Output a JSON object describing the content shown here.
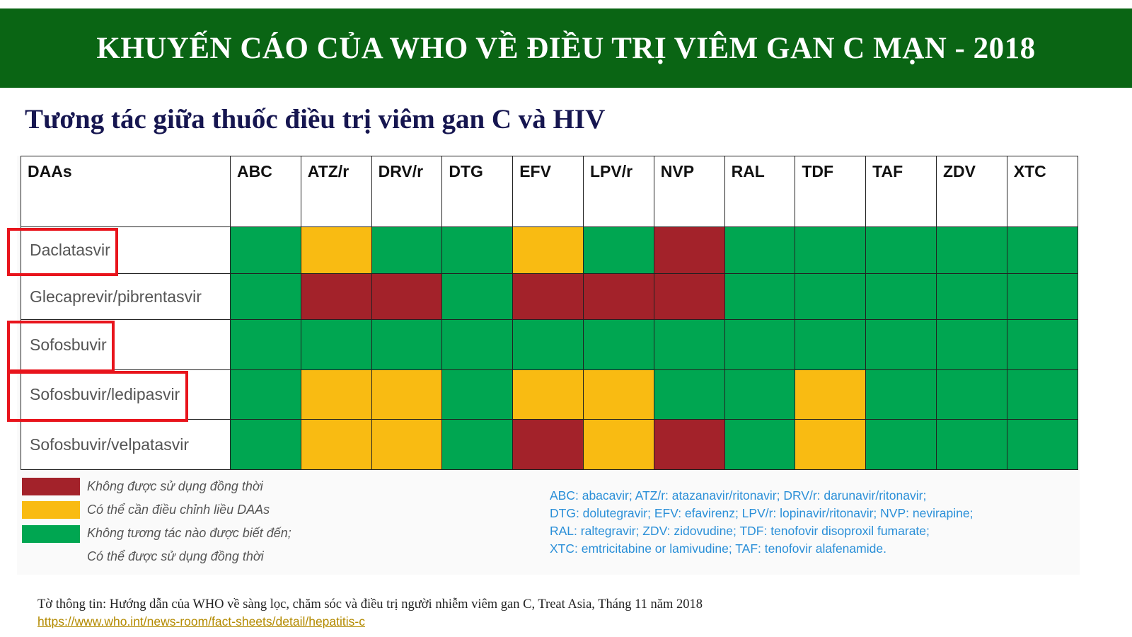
{
  "banner": {
    "title": "KHUYẾN CÁO CỦA WHO VỀ ĐIỀU TRỊ VIÊM GAN C MẠN - 2018"
  },
  "subtitle": "Tương tác giữa thuốc điều trị viêm gan C và HIV",
  "colors": {
    "red": "#a3222a",
    "yellow": "#f9bb12",
    "green": "#00a651",
    "banner_green": "#0a6514",
    "highlight": "#e8141c"
  },
  "table": {
    "corner_label": "DAAs",
    "columns": [
      "ABC",
      "ATZ/r",
      "DRV/r",
      "DTG",
      "EFV",
      "LPV/r",
      "NVP",
      "RAL",
      "TDF",
      "TAF",
      "ZDV",
      "XTC"
    ],
    "rows": [
      {
        "name": "Daclatasvir",
        "highlighted": true,
        "cells": [
          "green",
          "yellow",
          "green",
          "green",
          "yellow",
          "green",
          "red",
          "green",
          "green",
          "green",
          "green",
          "green"
        ]
      },
      {
        "name": "Glecaprevir/pibrentasvir",
        "highlighted": false,
        "cells": [
          "green",
          "red",
          "red",
          "green",
          "red",
          "red",
          "red",
          "green",
          "green",
          "green",
          "green",
          "green"
        ]
      },
      {
        "name": "Sofosbuvir",
        "highlighted": true,
        "cells": [
          "green",
          "green",
          "green",
          "green",
          "green",
          "green",
          "green",
          "green",
          "green",
          "green",
          "green",
          "green"
        ]
      },
      {
        "name": "Sofosbuvir/ledipasvir",
        "highlighted": true,
        "cells": [
          "green",
          "yellow",
          "yellow",
          "green",
          "yellow",
          "yellow",
          "green",
          "green",
          "yellow",
          "green",
          "green",
          "green"
        ]
      },
      {
        "name": "Sofosbuvir/velpatasvir",
        "highlighted": false,
        "cells": [
          "green",
          "yellow",
          "yellow",
          "green",
          "red",
          "yellow",
          "red",
          "green",
          "yellow",
          "green",
          "green",
          "green"
        ]
      }
    ]
  },
  "legend": {
    "red_label": "Không được sử dụng đồng thời",
    "yellow_label": "Có thể cần điều chỉnh liều DAAs",
    "green_label_1": "Không tương tác nào được biết đến;",
    "green_label_2": "Có thể được sử dụng đồng thời"
  },
  "abbreviations": [
    "ABC: abacavir; ATZ/r: atazanavir/ritonavir; DRV/r: darunavir/ritonavir;",
    "DTG: dolutegravir; EFV: efavirenz; LPV/r: lopinavir/ritonavir; NVP: nevirapine;",
    "RAL: raltegravir; ZDV: zidovudine; TDF: tenofovir disoproxil fumarate;",
    "XTC: emtricitabine or lamivudine; TAF: tenofovir alafenamide."
  ],
  "source": {
    "text": "Tờ thông tin: Hướng dẫn của WHO về sàng lọc, chăm sóc và điều trị người nhiễm viêm gan C, Treat Asia, Tháng 11 năm 2018",
    "link": "https://www.who.int/news-room/fact-sheets/detail/hepatitis-c"
  }
}
